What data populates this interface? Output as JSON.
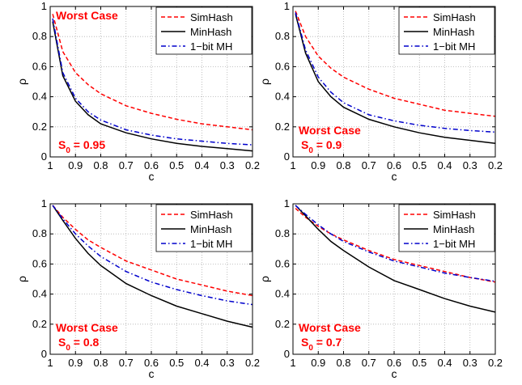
{
  "chart_data": [
    {
      "type": "line",
      "xlabel": "c",
      "ylabel": "ρ",
      "xlim": [
        1,
        0.2
      ],
      "ylim": [
        0,
        1
      ],
      "x_reversed": true,
      "xticks": [
        1,
        0.9,
        0.8,
        0.7,
        0.6,
        0.5,
        0.4,
        0.3,
        0.2
      ],
      "xtick_labels": [
        "1",
        "0.9",
        "0.8",
        "0.7",
        "0.6",
        "0.5",
        "0.4",
        "0.3",
        "0.2"
      ],
      "yticks": [
        0,
        0.2,
        0.4,
        0.6,
        0.8,
        1
      ],
      "ytick_labels": [
        "0",
        "0.2",
        "0.4",
        "0.6",
        "0.8",
        "1"
      ],
      "grid": true,
      "legend_position": "top-right",
      "annotation": {
        "label": "Worst Case",
        "s0_main": "S",
        "s0_sub": "0",
        "s0_rest": " = 0.95",
        "position": "top-left / bottom-left"
      },
      "x": [
        0.99,
        0.95,
        0.9,
        0.85,
        0.8,
        0.7,
        0.6,
        0.5,
        0.4,
        0.3,
        0.2
      ],
      "series": [
        {
          "name": "SimHash",
          "color": "#ff0000",
          "dash": "dashed",
          "values": [
            0.95,
            0.7,
            0.56,
            0.48,
            0.42,
            0.34,
            0.29,
            0.25,
            0.22,
            0.2,
            0.18
          ]
        },
        {
          "name": "MinHash",
          "color": "#000000",
          "dash": "solid",
          "values": [
            0.9,
            0.54,
            0.37,
            0.28,
            0.22,
            0.16,
            0.12,
            0.09,
            0.07,
            0.055,
            0.04
          ]
        },
        {
          "name": "1−bit MH",
          "color": "#0000cc",
          "dash": "dashdot",
          "values": [
            0.92,
            0.56,
            0.39,
            0.3,
            0.245,
            0.18,
            0.145,
            0.12,
            0.105,
            0.09,
            0.08
          ]
        }
      ]
    },
    {
      "type": "line",
      "xlabel": "c",
      "ylabel": "ρ",
      "xlim": [
        1,
        0.2
      ],
      "ylim": [
        0,
        1
      ],
      "x_reversed": true,
      "xticks": [
        1,
        0.9,
        0.8,
        0.7,
        0.6,
        0.5,
        0.4,
        0.3,
        0.2
      ],
      "xtick_labels": [
        "1",
        "0.9",
        "0.8",
        "0.7",
        "0.6",
        "0.5",
        "0.4",
        "0.3",
        "0.2"
      ],
      "yticks": [
        0,
        0.2,
        0.4,
        0.6,
        0.8,
        1
      ],
      "ytick_labels": [
        "0",
        "0.2",
        "0.4",
        "0.6",
        "0.8",
        "1"
      ],
      "grid": true,
      "legend_position": "top-right",
      "annotation": {
        "label": "Worst Case",
        "s0_main": "S",
        "s0_sub": "0",
        "s0_rest": " = 0.9",
        "position": "bottom-left"
      },
      "x": [
        0.99,
        0.95,
        0.9,
        0.85,
        0.8,
        0.7,
        0.6,
        0.5,
        0.4,
        0.3,
        0.2
      ],
      "series": [
        {
          "name": "SimHash",
          "color": "#ff0000",
          "dash": "dashed",
          "values": [
            0.97,
            0.8,
            0.67,
            0.59,
            0.53,
            0.45,
            0.39,
            0.35,
            0.31,
            0.29,
            0.27
          ]
        },
        {
          "name": "MinHash",
          "color": "#000000",
          "dash": "solid",
          "values": [
            0.95,
            0.69,
            0.5,
            0.4,
            0.33,
            0.25,
            0.2,
            0.16,
            0.13,
            0.11,
            0.09
          ]
        },
        {
          "name": "1−bit MH",
          "color": "#0000cc",
          "dash": "dashdot",
          "values": [
            0.96,
            0.71,
            0.53,
            0.43,
            0.36,
            0.28,
            0.24,
            0.21,
            0.19,
            0.175,
            0.165
          ]
        }
      ]
    },
    {
      "type": "line",
      "xlabel": "c",
      "ylabel": "ρ",
      "xlim": [
        1,
        0.2
      ],
      "ylim": [
        0,
        1
      ],
      "x_reversed": true,
      "xticks": [
        1,
        0.9,
        0.8,
        0.7,
        0.6,
        0.5,
        0.4,
        0.3,
        0.2
      ],
      "xtick_labels": [
        "1",
        "0.9",
        "0.8",
        "0.7",
        "0.6",
        "0.5",
        "0.4",
        "0.3",
        "0.2"
      ],
      "yticks": [
        0,
        0.2,
        0.4,
        0.6,
        0.8,
        1
      ],
      "ytick_labels": [
        "0",
        "0.2",
        "0.4",
        "0.6",
        "0.8",
        "1"
      ],
      "grid": true,
      "legend_position": "top-right",
      "annotation": {
        "label": "Worst Case",
        "s0_main": "S",
        "s0_sub": "0",
        "s0_rest": " = 0.8",
        "position": "bottom-left"
      },
      "x": [
        0.99,
        0.95,
        0.9,
        0.85,
        0.8,
        0.7,
        0.6,
        0.5,
        0.4,
        0.3,
        0.2
      ],
      "series": [
        {
          "name": "SimHash",
          "color": "#ff0000",
          "dash": "dashed",
          "values": [
            0.99,
            0.91,
            0.83,
            0.76,
            0.71,
            0.62,
            0.56,
            0.5,
            0.46,
            0.42,
            0.39
          ]
        },
        {
          "name": "MinHash",
          "color": "#000000",
          "dash": "solid",
          "values": [
            0.99,
            0.89,
            0.77,
            0.67,
            0.59,
            0.47,
            0.39,
            0.32,
            0.27,
            0.22,
            0.18
          ]
        },
        {
          "name": "1−bit MH",
          "color": "#0000cc",
          "dash": "dashdot",
          "values": [
            0.99,
            0.9,
            0.8,
            0.72,
            0.65,
            0.55,
            0.48,
            0.43,
            0.39,
            0.355,
            0.33
          ]
        }
      ]
    },
    {
      "type": "line",
      "xlabel": "c",
      "ylabel": "ρ",
      "xlim": [
        1,
        0.2
      ],
      "ylim": [
        0,
        1
      ],
      "x_reversed": true,
      "xticks": [
        1,
        0.9,
        0.8,
        0.7,
        0.6,
        0.5,
        0.4,
        0.3,
        0.2
      ],
      "xtick_labels": [
        "1",
        "0.9",
        "0.8",
        "0.7",
        "0.6",
        "0.5",
        "0.4",
        "0.3",
        "0.2"
      ],
      "yticks": [
        0,
        0.2,
        0.4,
        0.6,
        0.8,
        1
      ],
      "ytick_labels": [
        "0",
        "0.2",
        "0.4",
        "0.6",
        "0.8",
        "1"
      ],
      "grid": true,
      "legend_position": "top-right",
      "annotation": {
        "label": "Worst Case",
        "s0_main": "S",
        "s0_sub": "0",
        "s0_rest": " = 0.7",
        "position": "bottom-left"
      },
      "x": [
        0.99,
        0.95,
        0.9,
        0.85,
        0.8,
        0.7,
        0.6,
        0.5,
        0.4,
        0.3,
        0.2
      ],
      "series": [
        {
          "name": "SimHash",
          "color": "#ff0000",
          "dash": "dashed",
          "values": [
            0.97,
            0.91,
            0.85,
            0.8,
            0.76,
            0.69,
            0.63,
            0.59,
            0.55,
            0.51,
            0.48
          ]
        },
        {
          "name": "MinHash",
          "color": "#000000",
          "dash": "solid",
          "values": [
            0.99,
            0.92,
            0.83,
            0.75,
            0.69,
            0.58,
            0.49,
            0.43,
            0.37,
            0.32,
            0.28
          ]
        },
        {
          "name": "1−bit MH",
          "color": "#0000cc",
          "dash": "dashdot",
          "values": [
            0.99,
            0.93,
            0.86,
            0.8,
            0.75,
            0.68,
            0.62,
            0.58,
            0.54,
            0.51,
            0.485
          ]
        }
      ]
    }
  ]
}
